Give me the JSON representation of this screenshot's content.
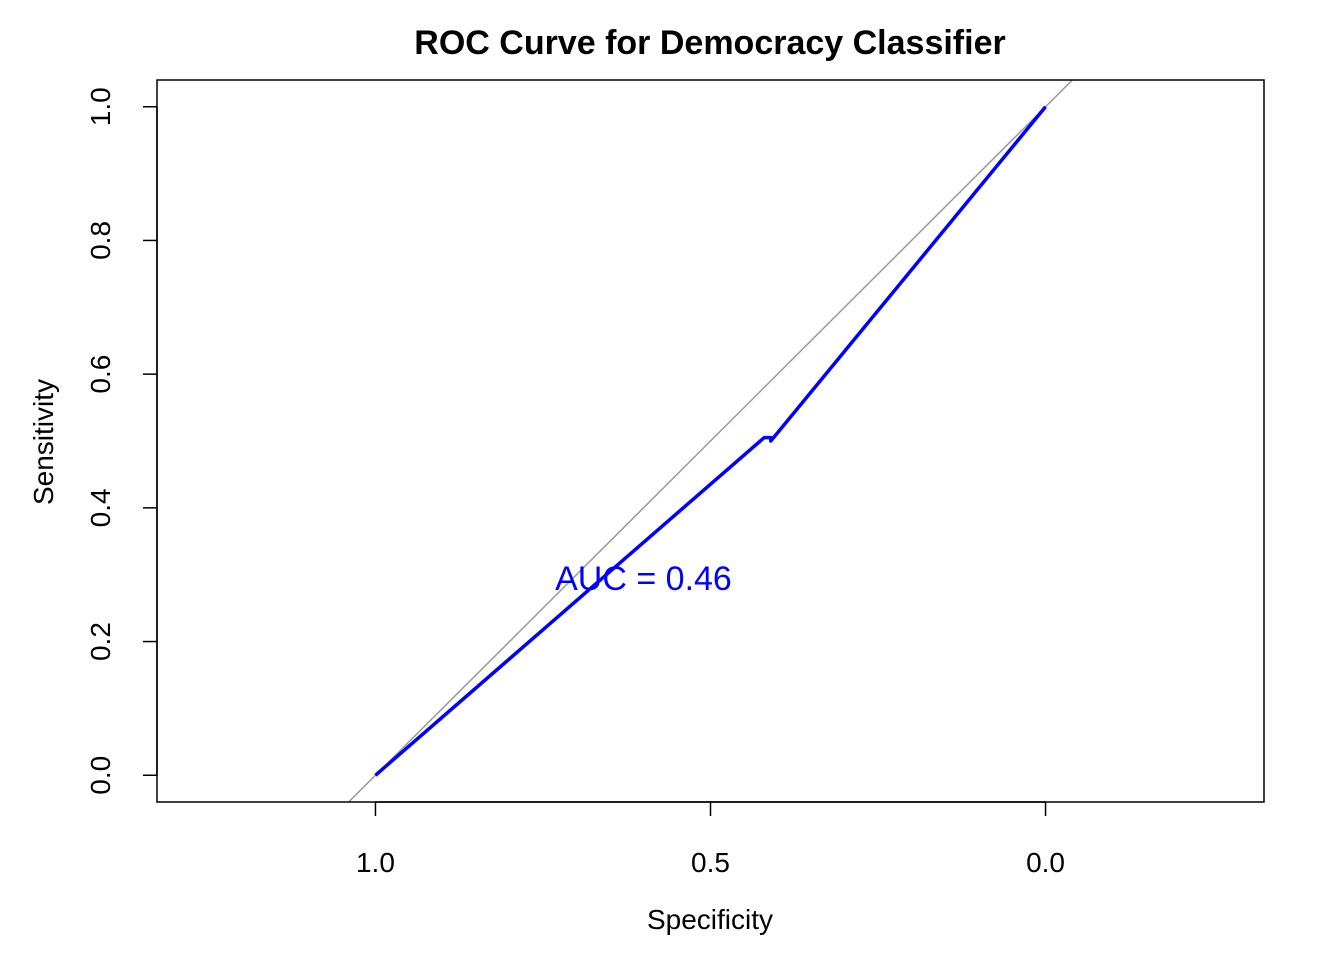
{
  "chart_data": {
    "type": "line",
    "title": "ROC Curve for Democracy Classifier",
    "xlabel": "Specificity",
    "ylabel": "Sensitivity",
    "x_reversed": true,
    "xlim": [
      1.326,
      -0.326
    ],
    "ylim": [
      -0.04,
      1.04
    ],
    "xticks": [
      1.0,
      0.5,
      0.0
    ],
    "xtick_labels": [
      "1.0",
      "0.5",
      "0.0"
    ],
    "yticks": [
      0.0,
      0.2,
      0.4,
      0.6,
      0.8,
      1.0
    ],
    "ytick_labels": [
      "0.0",
      "0.2",
      "0.4",
      "0.6",
      "0.8",
      "1.0"
    ],
    "grid": false,
    "series": [
      {
        "color": "#0000ff",
        "x": [
          1.0,
          0.42,
          0.42,
          0.41,
          0.41,
          0.0
        ],
        "y": [
          0.0,
          0.505,
          0.505,
          0.505,
          0.5,
          1.0
        ]
      }
    ],
    "reference_line": {
      "color": "#999999",
      "intercept": 1,
      "slope": -1
    },
    "annotation": {
      "text": "AUC = 0.46",
      "x": 0.6,
      "y": 0.295,
      "color": "#0000ff"
    }
  }
}
